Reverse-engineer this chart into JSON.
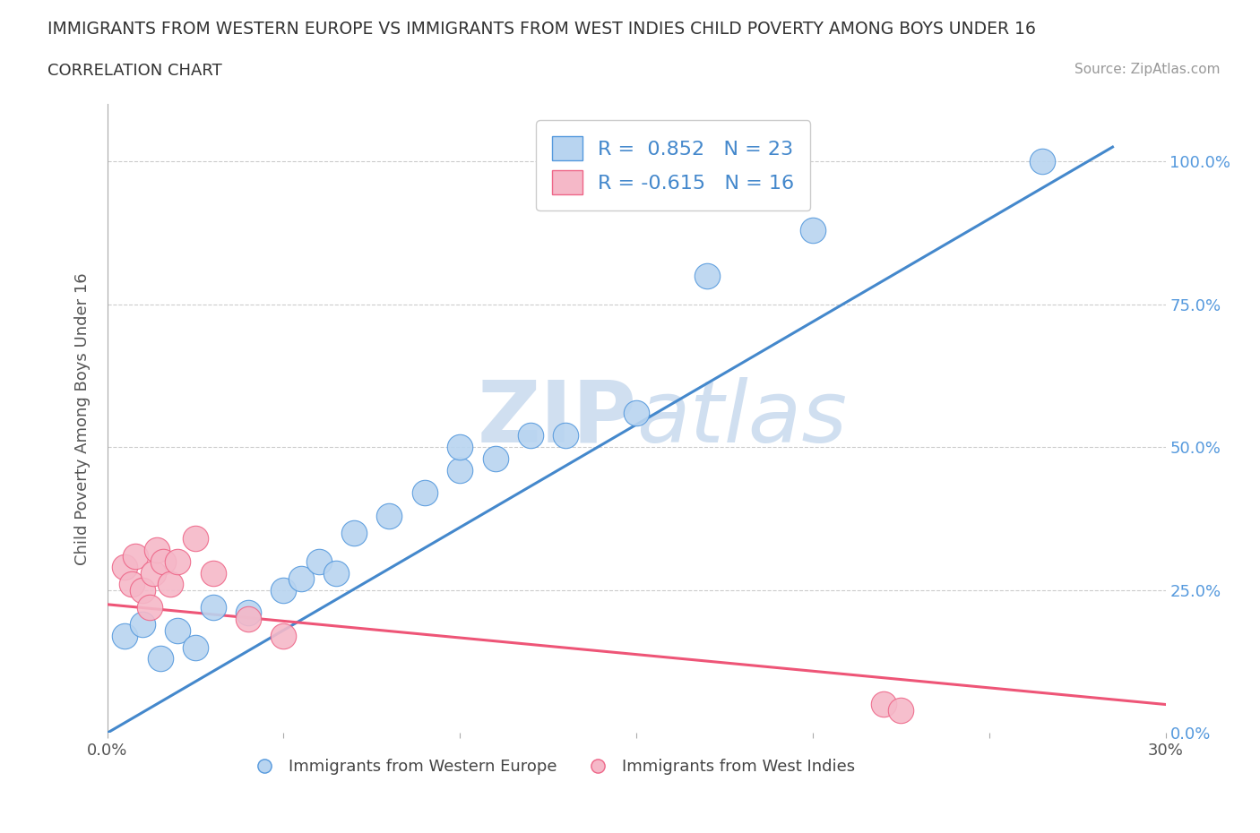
{
  "title": "IMMIGRANTS FROM WESTERN EUROPE VS IMMIGRANTS FROM WEST INDIES CHILD POVERTY AMONG BOYS UNDER 16",
  "subtitle": "CORRELATION CHART",
  "source": "Source: ZipAtlas.com",
  "ylabel": "Child Poverty Among Boys Under 16",
  "xlim": [
    0.0,
    0.3
  ],
  "ylim": [
    0.0,
    1.1
  ],
  "x_tick_positions": [
    0.0,
    0.05,
    0.1,
    0.15,
    0.2,
    0.25,
    0.3
  ],
  "x_tick_labels": [
    "0.0%",
    "",
    "",
    "",
    "",
    "",
    "30%"
  ],
  "y_ticks": [
    0.0,
    0.25,
    0.5,
    0.75,
    1.0
  ],
  "y_tick_labels": [
    "0.0%",
    "25.0%",
    "50.0%",
    "75.0%",
    "100.0%"
  ],
  "blue_R": 0.852,
  "blue_N": 23,
  "pink_R": -0.615,
  "pink_N": 16,
  "blue_fill_color": "#b8d4f0",
  "pink_fill_color": "#f5b8c8",
  "blue_edge_color": "#5599dd",
  "pink_edge_color": "#ee6688",
  "blue_line_color": "#4488cc",
  "pink_line_color": "#ee5577",
  "watermark_color": "#d0dff0",
  "blue_dots": [
    [
      0.005,
      0.17
    ],
    [
      0.01,
      0.19
    ],
    [
      0.015,
      0.13
    ],
    [
      0.02,
      0.18
    ],
    [
      0.025,
      0.15
    ],
    [
      0.03,
      0.22
    ],
    [
      0.04,
      0.21
    ],
    [
      0.05,
      0.25
    ],
    [
      0.055,
      0.27
    ],
    [
      0.06,
      0.3
    ],
    [
      0.065,
      0.28
    ],
    [
      0.07,
      0.35
    ],
    [
      0.08,
      0.38
    ],
    [
      0.09,
      0.42
    ],
    [
      0.1,
      0.46
    ],
    [
      0.1,
      0.5
    ],
    [
      0.11,
      0.48
    ],
    [
      0.12,
      0.52
    ],
    [
      0.13,
      0.52
    ],
    [
      0.15,
      0.56
    ],
    [
      0.17,
      0.8
    ],
    [
      0.2,
      0.88
    ],
    [
      0.265,
      1.0
    ]
  ],
  "pink_dots": [
    [
      0.005,
      0.29
    ],
    [
      0.007,
      0.26
    ],
    [
      0.008,
      0.31
    ],
    [
      0.01,
      0.25
    ],
    [
      0.012,
      0.22
    ],
    [
      0.013,
      0.28
    ],
    [
      0.014,
      0.32
    ],
    [
      0.016,
      0.3
    ],
    [
      0.018,
      0.26
    ],
    [
      0.02,
      0.3
    ],
    [
      0.025,
      0.34
    ],
    [
      0.03,
      0.28
    ],
    [
      0.04,
      0.2
    ],
    [
      0.05,
      0.17
    ],
    [
      0.22,
      0.05
    ],
    [
      0.225,
      0.04
    ]
  ],
  "blue_line_x": [
    0.0,
    0.285
  ],
  "blue_line_y": [
    0.0,
    1.025
  ],
  "pink_line_x": [
    0.0,
    0.3
  ],
  "pink_line_y": [
    0.225,
    0.05
  ]
}
